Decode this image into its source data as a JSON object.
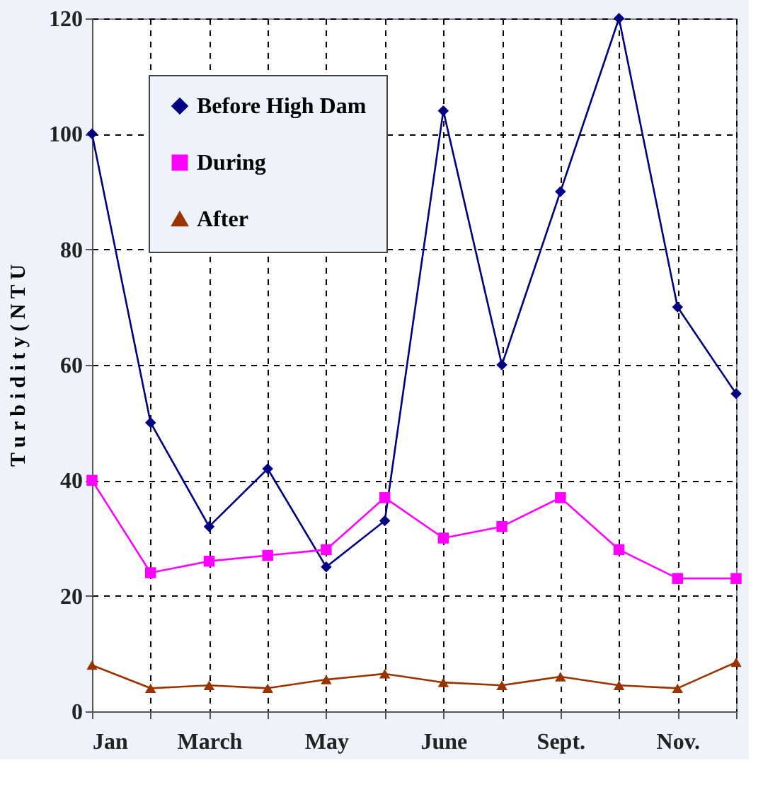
{
  "chart_data": {
    "type": "line",
    "ylabel": "T u r b i d i t y  ( N T U",
    "categories": [
      "Jan",
      null,
      "March",
      null,
      "May",
      null,
      "June",
      null,
      "Sept.",
      null,
      "Nov.",
      null
    ],
    "series": [
      {
        "name": "Before High Dam",
        "color": "#000080",
        "marker": "diamond",
        "values": [
          100,
          50,
          32,
          42,
          25,
          33,
          104,
          60,
          90,
          120,
          70,
          55
        ]
      },
      {
        "name": "During",
        "color": "#ff00ff",
        "marker": "square",
        "values": [
          40,
          24,
          26,
          27,
          28,
          37,
          30,
          32,
          37,
          28,
          23,
          23
        ]
      },
      {
        "name": "After",
        "color": "#993300",
        "marker": "triangle",
        "values": [
          8,
          4,
          4.5,
          4,
          5.5,
          6.5,
          5,
          4.5,
          6,
          4.5,
          4,
          8.5
        ]
      }
    ],
    "ylim": [
      0,
      120
    ],
    "yticks": [
      0,
      20,
      40,
      60,
      80,
      100,
      120
    ],
    "grid": true,
    "legend": "top left",
    "line_style": "solid"
  }
}
